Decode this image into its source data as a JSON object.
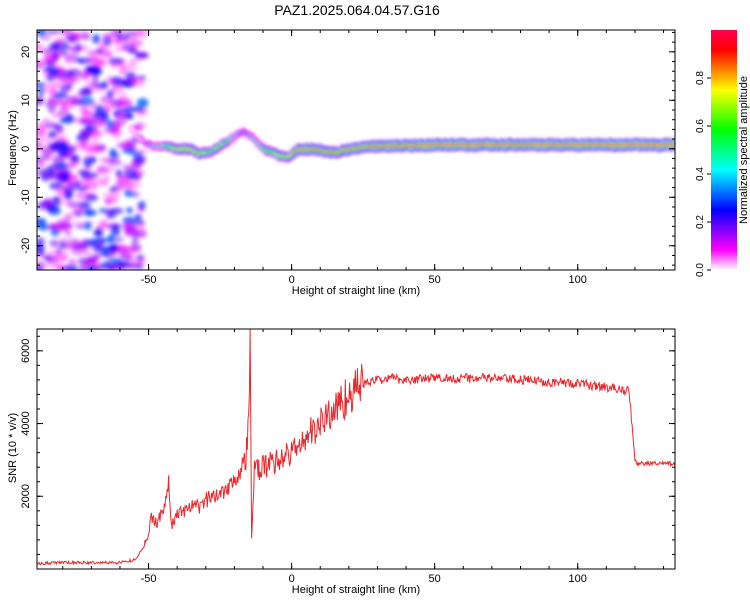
{
  "figure": {
    "title": "PAZ1.2025.064.04.57.G16"
  },
  "chart_data": [
    {
      "type": "heatmap",
      "xlabel": "Height of straight line (km)",
      "ylabel": "Frequency (Hz)",
      "xlim": [
        -89,
        134
      ],
      "ylim": [
        -25,
        24.5
      ],
      "xticks": [
        -50,
        0,
        50,
        100
      ],
      "yticks": [
        -20,
        -10,
        0,
        10,
        20
      ],
      "colorbar": {
        "label": "Normalized spectral amplitude",
        "range": [
          0,
          1
        ],
        "ticks": [
          "0.0",
          "0.2",
          "0.4",
          "0.6",
          "0.8"
        ],
        "colors": [
          "#ffffff",
          "#ff00ff",
          "#8000ff",
          "#0000ff",
          "#0080ff",
          "#00ffff",
          "#00ff80",
          "#00ff00",
          "#80ff00",
          "#ffff00",
          "#ff8000",
          "#ff0000",
          "#ff0050"
        ]
      },
      "ridge": {
        "x": [
          -56,
          -52,
          -48,
          -44,
          -40,
          -36,
          -32,
          -28,
          -24,
          -20,
          -17,
          -14,
          -10,
          -6,
          -2,
          0,
          2,
          5,
          10,
          15,
          20,
          25,
          30,
          40,
          50,
          60,
          70,
          80,
          90,
          100,
          110,
          120,
          134
        ],
        "freq": [
          4,
          1.5,
          0.5,
          0.5,
          0,
          0,
          -1,
          -0.5,
          1,
          2.5,
          3.5,
          2.5,
          0,
          -1,
          -1.8,
          -1.2,
          -0.3,
          0,
          -0.3,
          -0.8,
          -0.2,
          0.3,
          0.5,
          0.6,
          0.8,
          0.8,
          0.8,
          0.8,
          0.8,
          0.8,
          0.8,
          0.8,
          0.8
        ],
        "amplitude": [
          0.1,
          0.25,
          0.45,
          0.6,
          0.75,
          0.8,
          0.75,
          0.7,
          0.7,
          0.5,
          0.35,
          0.45,
          0.6,
          0.7,
          0.75,
          0.8,
          0.85,
          0.88,
          0.85,
          0.85,
          0.9,
          0.88,
          0.9,
          0.92,
          0.95,
          0.95,
          0.95,
          0.92,
          0.95,
          0.95,
          0.95,
          0.95,
          0.95
        ]
      },
      "noise_region": {
        "x_range": [
          -89,
          -52
        ],
        "amplitude": [
          0,
          0.3
        ]
      }
    },
    {
      "type": "line",
      "xlabel": "Height of straight line (km)",
      "ylabel": "SNR (10 * v/v)",
      "xlim": [
        -89,
        134
      ],
      "ylim": [
        0,
        6600
      ],
      "xticks": [
        -50,
        0,
        50,
        100
      ],
      "yticks": [
        2000,
        4000,
        6000
      ],
      "series": [
        {
          "color": "#e8282d",
          "x": [
            -89,
            -80,
            -70,
            -60,
            -55,
            -52,
            -50,
            -49,
            -47,
            -45,
            -43,
            -42,
            -40,
            -38,
            -35,
            -32,
            -30,
            -27,
            -25,
            -22,
            -20,
            -18,
            -16,
            -15,
            -14.5,
            -14,
            -13,
            -10,
            -5,
            0,
            5,
            10,
            15,
            20,
            25,
            30,
            35,
            40,
            50,
            60,
            70,
            80,
            90,
            100,
            110,
            118,
            120,
            121,
            134
          ],
          "y": [
            150,
            180,
            170,
            180,
            250,
            550,
            1000,
            1400,
            1300,
            1600,
            2300,
            1200,
            1500,
            1600,
            1700,
            1700,
            1900,
            2000,
            2100,
            2300,
            2500,
            2700,
            3000,
            4200,
            6500,
            800,
            2700,
            2800,
            3000,
            3200,
            3600,
            4000,
            4400,
            4800,
            5100,
            5200,
            5250,
            5200,
            5250,
            5250,
            5250,
            5200,
            5150,
            5100,
            5000,
            4900,
            2950,
            2900,
            2900
          ]
        }
      ]
    }
  ]
}
